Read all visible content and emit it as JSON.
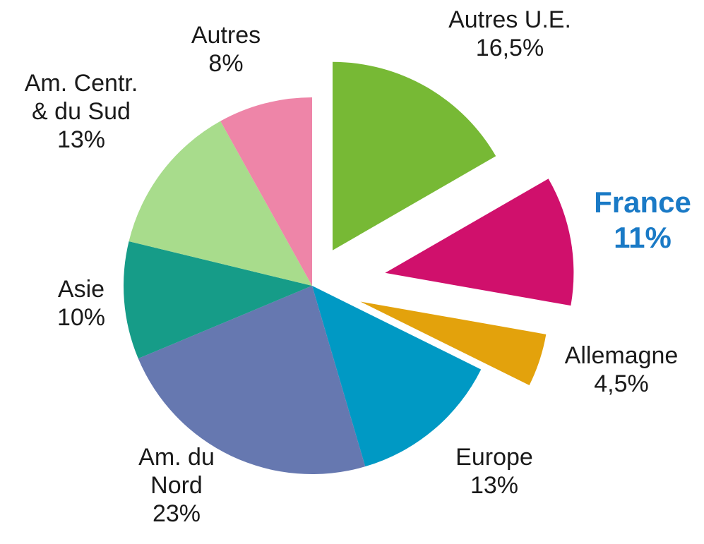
{
  "chart_data": {
    "type": "pie",
    "categories": [
      "Autres U.E.",
      "France",
      "Allemagne",
      "Europe",
      "Am. du\nNord",
      "Asie",
      "Am. Centr.\n& du Sud",
      "Autres"
    ],
    "values": [
      16.5,
      11,
      4.5,
      13,
      23,
      10,
      13,
      8
    ],
    "value_labels": [
      "16,5%",
      "11%",
      "4,5%",
      "13%",
      "23%",
      "10%",
      "13%",
      "8%"
    ],
    "colors": [
      "#77b935",
      "#d0106c",
      "#e3a20c",
      "#0099c4",
      "#6678b0",
      "#169c88",
      "#a8dc8c",
      "#ee85a8"
    ]
  }
}
